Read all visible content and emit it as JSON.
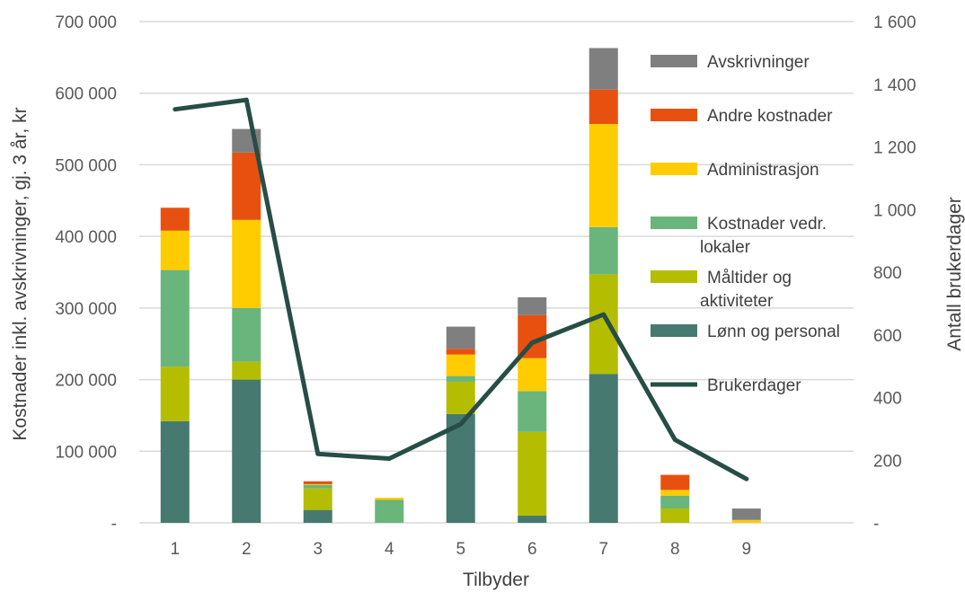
{
  "chart_data": {
    "type": "bar",
    "stacked": true,
    "xlabel": "Tilbyder",
    "ylabel": "Kostnader inkl. avskrivninger, gj. 3 år, kr",
    "y2label": "Antall brukerdager",
    "categories": [
      "1",
      "2",
      "3",
      "4",
      "5",
      "6",
      "7",
      "8",
      "9"
    ],
    "ylim": [
      0,
      700000
    ],
    "y2lim": [
      0,
      1600
    ],
    "yticks": [
      "-",
      "100 000",
      "200 000",
      "300 000",
      "400 000",
      "500 000",
      "600 000",
      "700 000"
    ],
    "y2ticks": [
      "-",
      "200",
      "400",
      "600",
      "800",
      "1 000",
      "1 200",
      "1 400",
      "1 600"
    ],
    "grid": true,
    "legend_position": "right",
    "series": [
      {
        "name": "Lønn og personal",
        "color": "#46796F",
        "values": [
          142000,
          200000,
          18000,
          0,
          152000,
          10000,
          208000,
          0,
          0
        ]
      },
      {
        "name": "Måltider og aktiviteter",
        "color": "#B5BD00",
        "values": [
          76000,
          25000,
          30000,
          0,
          45000,
          117000,
          139000,
          20000,
          0
        ]
      },
      {
        "name": "Kostnader vedr. lokaler",
        "color": "#69B57B",
        "values": [
          135000,
          75000,
          5000,
          32000,
          8000,
          57000,
          66000,
          18000,
          0
        ]
      },
      {
        "name": "Administrasjon",
        "color": "#FFCC00",
        "values": [
          55000,
          123000,
          1000,
          3000,
          30000,
          46000,
          144000,
          8000,
          4000
        ]
      },
      {
        "name": "Andre kostnader",
        "color": "#E8500F",
        "values": [
          32000,
          94000,
          4000,
          0,
          8000,
          60000,
          48000,
          21000,
          0
        ]
      },
      {
        "name": "Avskrivninger",
        "color": "#7F7F7F",
        "values": [
          0,
          33000,
          0,
          0,
          31000,
          25000,
          58000,
          0,
          16000
        ]
      }
    ],
    "line_series": {
      "name": "Brukerdager",
      "color": "#264D46",
      "axis": "right",
      "values": [
        1320,
        1350,
        220,
        205,
        315,
        575,
        665,
        265,
        140
      ]
    }
  }
}
